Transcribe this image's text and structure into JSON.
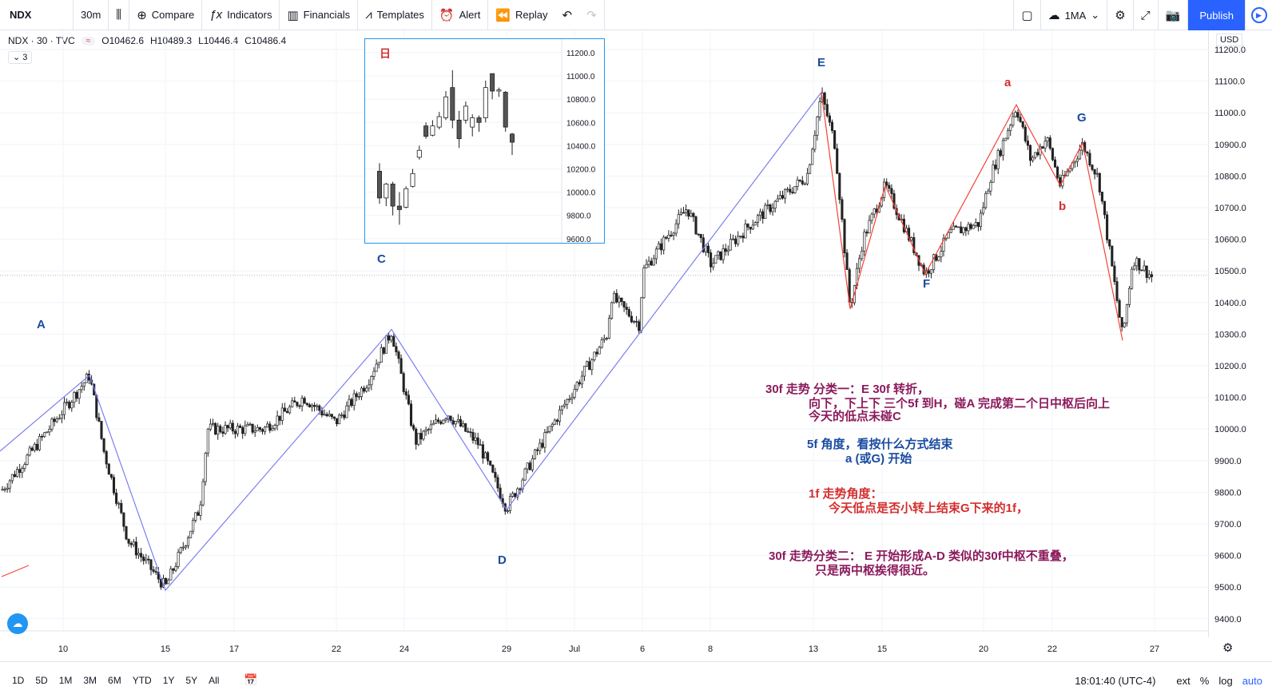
{
  "toolbar": {
    "symbol": "NDX",
    "interval": "30m",
    "compare": "Compare",
    "indicators": "Indicators",
    "financials": "Financials",
    "templates": "Templates",
    "alert": "Alert",
    "replay": "Replay",
    "layout": "1MA",
    "publish": "Publish"
  },
  "legend": {
    "title": "NDX · 30 · TVC",
    "badge": "≈",
    "open": "O10462.6",
    "high": "H10489.3",
    "low": "L10446.4",
    "close": "C10486.4",
    "collapse": "3"
  },
  "axis": {
    "currency": "USD",
    "y_ticks": [
      "11200.0",
      "11100.0",
      "11000.0",
      "10900.0",
      "10800.0",
      "10700.0",
      "10600.0",
      "10500.0",
      "10400.0",
      "10300.0",
      "10200.0",
      "10100.0",
      "10000.0",
      "9900.0",
      "9800.0",
      "9700.0",
      "9600.0",
      "9500.0",
      "9400.0"
    ],
    "x_ticks": [
      "10",
      "15",
      "17",
      "22",
      "24",
      "29",
      "Jul",
      "6",
      "8",
      "13",
      "15",
      "20",
      "22",
      "27"
    ]
  },
  "bottom": {
    "ranges": [
      "1D",
      "5D",
      "1M",
      "3M",
      "6M",
      "YTD",
      "1Y",
      "5Y",
      "All"
    ],
    "time": "18:01:40 (UTC-4)",
    "ext": "ext",
    "percent": "%",
    "log": "log",
    "auto": "auto"
  },
  "wave_labels": {
    "A": "A",
    "C": "C",
    "D": "D",
    "E": "E",
    "F": "F",
    "G": "G",
    "a": "a",
    "b": "b"
  },
  "annotations": {
    "line1": "30f 走势 分类一：E 30f 转折，",
    "line2": "向下，下上下 三个5f 到H，碰A 完成第二个日中枢后向上",
    "line3": "今天的低点未碰C",
    "line4": "5f 角度，看按什么方式结束",
    "line5": "a (或G) 开始",
    "line6": "1f 走势角度：",
    "line7": "今天低点是否小转上结束G下来的1f，",
    "line8": "30f 走势分类二：  E 开始形成A-D 类似的30f中枢不重叠，",
    "line9": "只是两中枢挨得很近。"
  },
  "inset": {
    "label": "日",
    "y_ticks": [
      "11200.0",
      "11000.0",
      "10800.0",
      "10600.0",
      "10400.0",
      "10200.0",
      "10000.0",
      "9800.0",
      "9600.0"
    ]
  },
  "colors": {
    "blue_label": "#1a4ba0",
    "red_label": "#d32f2f",
    "purple_text": "#8b1a5c",
    "blue_line": "#7b7ff0",
    "red_line": "#f44336",
    "accent": "#2962ff"
  }
}
